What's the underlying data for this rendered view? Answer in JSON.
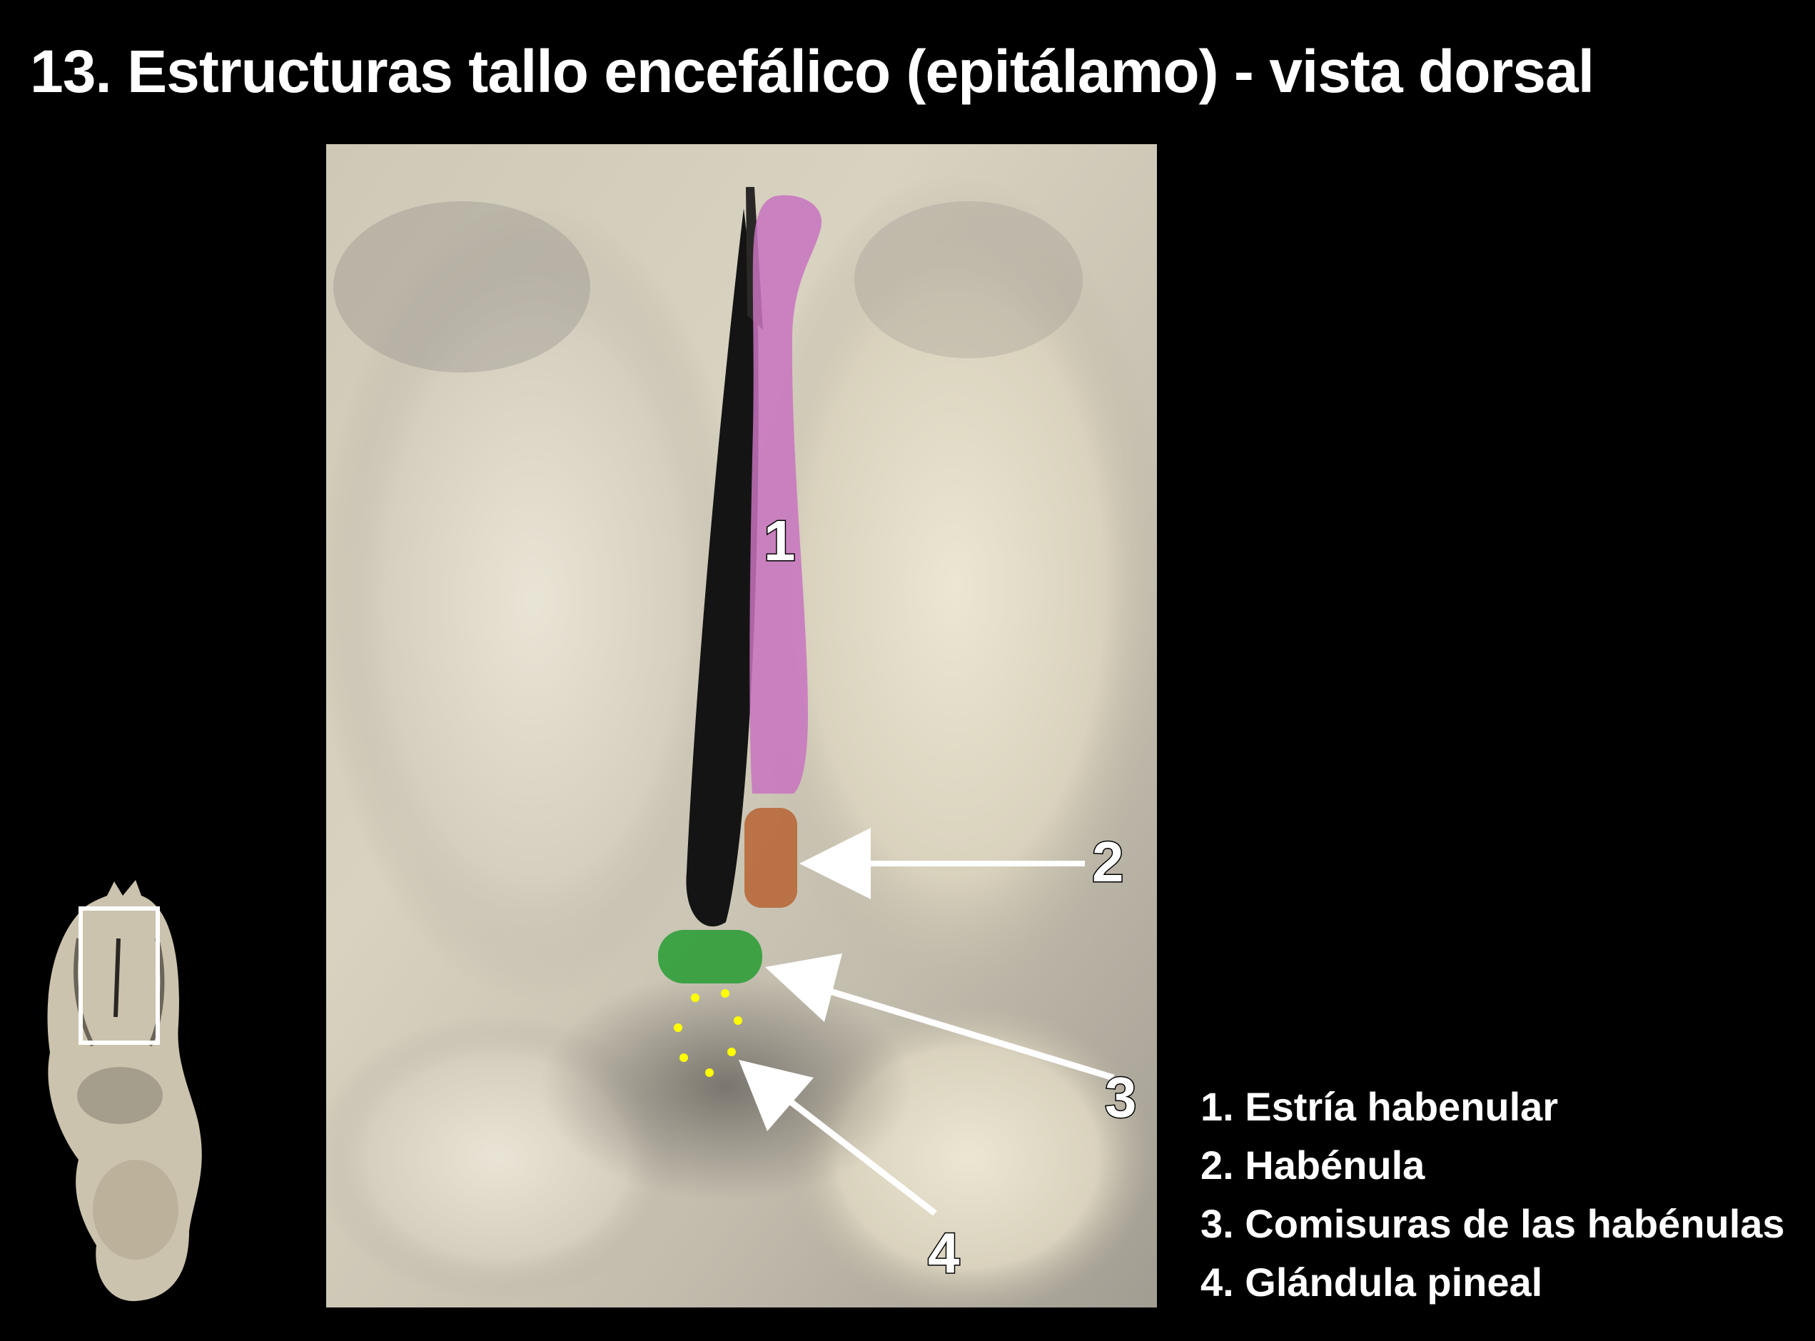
{
  "title": "13. Estructuras tallo encefálico (epitálamo) - vista dorsal",
  "markers": {
    "m1": "1",
    "m2": "2",
    "m3": "3",
    "m4": "4"
  },
  "legend": [
    "1. Estría habenular",
    "2. Habénula",
    "3. Comisuras de las habénulas",
    "4. Glándula pineal"
  ],
  "colors": {
    "background": "#000000",
    "stria_habenular": "#c873c0",
    "habenula": "#b8683a",
    "habenular_commissure": "#2f9e38",
    "pineal_outline": "#ffff00",
    "arrows": "#ffffff"
  }
}
